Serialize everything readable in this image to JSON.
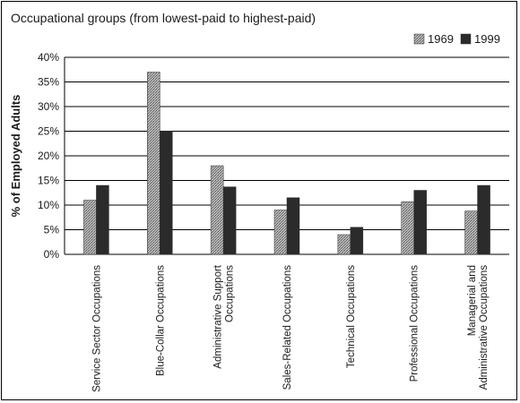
{
  "chart_data": {
    "type": "bar",
    "title": "Occupational groups (from lowest-paid to highest-paid)",
    "ylabel": "% of Employed Adults",
    "xlabel": "",
    "ylim": [
      0,
      40
    ],
    "yticks": [
      "0%",
      "5%",
      "10%",
      "15%",
      "20%",
      "25%",
      "30%",
      "35%",
      "40%"
    ],
    "grid": "horizontal",
    "legend_position": "top-right",
    "categories": [
      [
        "Service Sector Occupations"
      ],
      [
        "Blue-Collar Occupations"
      ],
      [
        "Administrative Support",
        "Occupations"
      ],
      [
        "Sales-Related Occupations"
      ],
      [
        "Technical Occupations"
      ],
      [
        "Professional Occupations"
      ],
      [
        "Managerial and",
        "Administrative Occupations"
      ]
    ],
    "series": [
      {
        "name": "1969",
        "values": [
          11,
          37,
          18,
          9,
          4,
          10.7,
          8.8
        ],
        "color": "#9a9a9a",
        "pattern": "hatched"
      },
      {
        "name": "1999",
        "values": [
          14,
          25,
          13.7,
          11.5,
          5.5,
          13,
          14
        ],
        "color": "#2b2b2b",
        "pattern": "solid"
      }
    ]
  }
}
